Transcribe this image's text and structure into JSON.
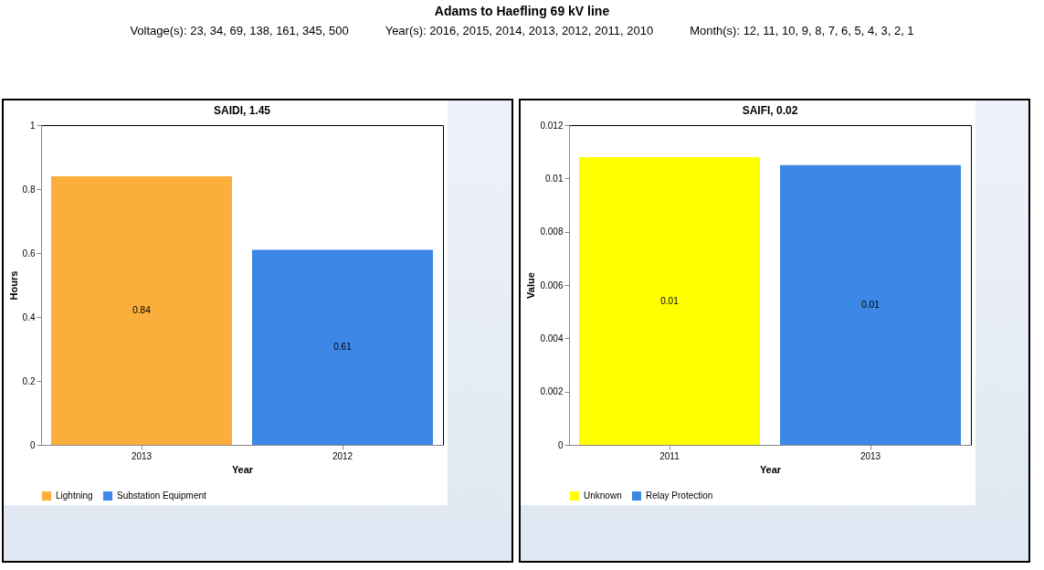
{
  "chart_data": [
    {
      "type": "other",
      "title": "Adams to Haefling 69 kV line",
      "annotations": [
        "Voltage(s): 23, 34, 69, 138, 161, 345, 500",
        "Year(s): 2016, 2015, 2014, 2013, 2012, 2011, 2010",
        "Month(s): 12, 11, 10, 9, 8, 7, 6, 5, 4, 3, 2, 1"
      ]
    },
    {
      "type": "bar",
      "title": "SAIDI, 1.45",
      "xlabel": "Year",
      "ylabel": "Hours",
      "categories": [
        "2013",
        "2012"
      ],
      "series": [
        {
          "name": "Lightning",
          "color": "#fbae3c",
          "values": [
            0.84,
            null
          ]
        },
        {
          "name": "Substation Equipment",
          "color": "#3d87e6",
          "values": [
            null,
            0.61
          ]
        }
      ],
      "ylim": [
        0,
        1
      ],
      "yticks": [
        0,
        0.2,
        0.4,
        0.6,
        0.8,
        1
      ],
      "grid": false,
      "legend": "bottom",
      "data_labels": true
    },
    {
      "type": "bar",
      "title": "SAIFI, 0.02",
      "xlabel": "Year",
      "ylabel": "Value",
      "categories": [
        "2011",
        "2013"
      ],
      "series": [
        {
          "name": "Unknown",
          "color": "#ffff00",
          "values": [
            0.0108,
            null
          ],
          "value_labels": [
            "0.01",
            null
          ]
        },
        {
          "name": "Relay Protection",
          "color": "#3d87e6",
          "values": [
            null,
            0.0105
          ],
          "value_labels": [
            null,
            "0.01"
          ]
        }
      ],
      "ylim": [
        0,
        0.012
      ],
      "yticks": [
        0,
        0.002,
        0.004,
        0.006,
        0.008,
        0.01,
        0.012
      ],
      "grid": false,
      "legend": "bottom"
    }
  ]
}
